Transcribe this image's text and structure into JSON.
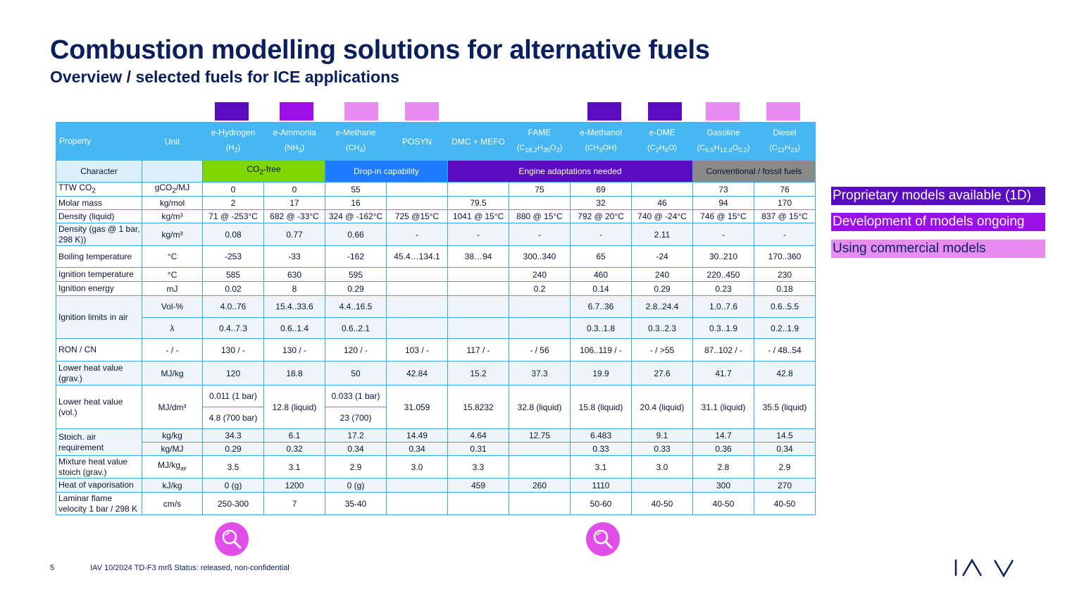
{
  "title": "Combustion modelling solutions for alternative fuels",
  "subtitle": "Overview / selected fuels for ICE applications",
  "colors": {
    "proprietary": "#5a0cc0",
    "development": "#9a10e6",
    "commercial": "#e98cf2",
    "header": "#45b6f2",
    "co2free": "#7fd600",
    "dropin": "#1e7bff",
    "conventional": "#8a8a8a"
  },
  "header": {
    "property": "Property",
    "unit": "Unit",
    "fuels": [
      {
        "name": "e-Hydrogen",
        "formula_html": "(H<sub>2</sub>)"
      },
      {
        "name": "e-Ammonia",
        "formula_html": "(NH<sub>3</sub>)"
      },
      {
        "name": "e-Methane",
        "formula_html": "(CH<sub>4</sub>)"
      },
      {
        "name": "POSYN",
        "formula_html": ""
      },
      {
        "name": "DMC + MEFO",
        "formula_html": ""
      },
      {
        "name": "FAME",
        "formula_html": "(C<sub>18,2</sub>H<sub>35</sub>O<sub>2</sub>)"
      },
      {
        "name": "e-Methanol",
        "formula_html": "(CH<sub>3</sub>OH)"
      },
      {
        "name": "e-DME",
        "formula_html": "(C<sub>2</sub>H<sub>6</sub>O)"
      },
      {
        "name": "Gasoline",
        "formula_html": "(C<sub>6.5</sub>H<sub>12.6</sub>O<sub>0.2</sub>)"
      },
      {
        "name": "Diesel",
        "formula_html": "(C<sub>12</sub>H<sub>23</sub>)"
      }
    ]
  },
  "character": {
    "label": "Character",
    "co2free": "CO₂-free",
    "dropin": "Drop-in capability",
    "engine": "Engine adaptations needed",
    "conventional": "Conventional / fossil fuels"
  },
  "rows": {
    "ttw": {
      "prop": "TTW CO₂",
      "unit": "gCO₂/MJ",
      "v": [
        "0",
        "0",
        "55",
        "",
        "",
        "75",
        "69",
        "",
        "73",
        "76"
      ]
    },
    "molar": {
      "prop": "Molar mass",
      "unit": "kg/mol",
      "v": [
        "2",
        "17",
        "16",
        "",
        "79.5",
        "",
        "32",
        "46",
        "94",
        "170"
      ]
    },
    "dens_liq": {
      "prop": "Density (liquid)",
      "unit": "kg/m³",
      "v": [
        "71 @ -253°C",
        "682 @ -33°C",
        "324 @ -162°C",
        "725 @15°C",
        "1041 @ 15°C",
        "880 @ 15°C",
        "792 @ 20°C",
        "740 @ -24°C",
        "746 @ 15°C",
        "837 @ 15°C"
      ]
    },
    "dens_gas": {
      "prop": "Density (gas @ 1 bar, 298 K))",
      "unit": "kg/m³",
      "v": [
        "0.08",
        "0.77",
        "0.66",
        "-",
        "-",
        "-",
        "-",
        "2.11",
        "-",
        "-"
      ]
    },
    "boil": {
      "prop": "Boiling temperature",
      "unit": "°C",
      "v": [
        "-253",
        "-33",
        "-162",
        "45.4…134.1",
        "38…94",
        "300..340",
        "65",
        "-24",
        "30..210",
        "170..360"
      ]
    },
    "ign_t": {
      "prop": "Ignition temperature",
      "unit": "°C",
      "v": [
        "585",
        "630",
        "595",
        "",
        "",
        "240",
        "460",
        "240",
        "220..450",
        "230"
      ]
    },
    "ign_e": {
      "prop": "Ignition energy",
      "unit": "mJ",
      "v": [
        "0.02",
        "8",
        "0.29",
        "",
        "",
        "0.2",
        "0.14",
        "0.29",
        "0.23",
        "0.18"
      ]
    },
    "ign_lim": {
      "prop": "Ignition limits in air",
      "unit1": "Vol-%",
      "unit2": "λ",
      "v1": [
        "4.0..76",
        "15.4..33.6",
        "4.4..16.5",
        "",
        "",
        "",
        "6.7..36",
        "2.8..24.4",
        "1.0..7.6",
        "0.6..5.5"
      ],
      "v2": [
        "0.4..7.3",
        "0.6..1.4",
        "0.6..2.1",
        "",
        "",
        "",
        "0.3..1.8",
        "0.3..2.3",
        "0.3..1.9",
        "0.2..1.9"
      ]
    },
    "ron": {
      "prop": "RON / CN",
      "unit": "- / -",
      "v": [
        "130 / -",
        "130 / -",
        "120 / -",
        "103 / -",
        "117 / -",
        "- / 56",
        "106..119 / -",
        "- / >55",
        "87..102 / -",
        "- / 48..54"
      ]
    },
    "lhv_grav": {
      "prop": "Lower heat value (grav.)",
      "unit": "MJ/kg",
      "v": [
        "120",
        "18.8",
        "50",
        "42.84",
        "15.2",
        "37.3",
        "19.9",
        "27.6",
        "41.7",
        "42.8"
      ]
    },
    "lhv_vol": {
      "prop": "Lower heat value (vol.)",
      "unit": "MJ/dm³",
      "h2_a": "0.011 (1 bar)",
      "h2_b": "4.8 (700 bar)",
      "nh3": "12.8 (liquid)",
      "ch4_a": "0.033 (1 bar)",
      "ch4_b": "23 (700)",
      "v": [
        "31.059",
        "15.8232",
        "32.8 (liquid)",
        "15.8 (liquid)",
        "20.4 (liquid)",
        "31.1 (liquid)",
        "35.5 (liquid)"
      ]
    },
    "stoich": {
      "prop": "Stoich. air requirement",
      "unit1": "kg/kg",
      "unit2": "kg/MJ",
      "v1": [
        "34.3",
        "6.1",
        "17.2",
        "14.49",
        "4.64",
        "12.75",
        "6.483",
        "9.1",
        "14.7",
        "14.5"
      ],
      "v2": [
        "0.29",
        "0.32",
        "0.34",
        "0.34",
        "0.31",
        "",
        "0.33",
        "0.33",
        "0.36",
        "0.34"
      ]
    },
    "mix": {
      "prop": "Mixture heat value stoich (grav.)",
      "unit": "MJ/kg",
      "unit_sub": "air",
      "v": [
        "3.5",
        "3.1",
        "2.9",
        "3.0",
        "3.3",
        "",
        "3.1",
        "3.0",
        "2.8",
        "2.9"
      ]
    },
    "vap": {
      "prop": "Heat of vaporisation",
      "unit": "kJ/kg",
      "v": [
        "0 (g)",
        "1200",
        "0 (g)",
        "",
        "459",
        "260",
        "1110",
        "",
        "300",
        "270"
      ]
    },
    "flame": {
      "prop": "Laminar flame velocity 1 bar / 298 K",
      "unit": "cm/s",
      "v": [
        "250-300",
        "7",
        "35-40",
        "",
        "",
        "",
        "50-60",
        "40-50",
        "40-50",
        "40-50"
      ]
    }
  },
  "legend": {
    "proprietary": "Proprietary models available (1D)",
    "development": "Development of models ongoing",
    "commercial": "Using commercial models"
  },
  "footer": {
    "page": "5",
    "info": "IAV  10/2024  TD-F3  mrß  Status: released, non-confidential"
  },
  "icons": [
    "search-icon",
    "search-icon"
  ]
}
